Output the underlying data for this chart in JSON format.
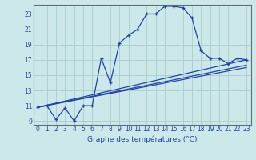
{
  "title": "Graphe des températures (°C)",
  "bg_color": "#cce8e8",
  "grid_color": "#aacccc",
  "line_color": "#2244aa",
  "xlim": [
    -0.5,
    23.5
  ],
  "ylim": [
    8.5,
    24.2
  ],
  "xticks": [
    0,
    1,
    2,
    3,
    4,
    5,
    6,
    7,
    8,
    9,
    10,
    11,
    12,
    13,
    14,
    15,
    16,
    17,
    18,
    19,
    20,
    21,
    22,
    23
  ],
  "yticks": [
    9,
    11,
    13,
    15,
    17,
    19,
    21,
    23
  ],
  "curve1_x": [
    0,
    1,
    2,
    3,
    4,
    5,
    6,
    7,
    8,
    9,
    10,
    11,
    12,
    13,
    14,
    15,
    16,
    17,
    18,
    19,
    20,
    21,
    22,
    23
  ],
  "curve1_y": [
    10.8,
    11.0,
    9.2,
    10.7,
    9.0,
    11.0,
    11.0,
    17.2,
    14.0,
    19.2,
    20.2,
    21.0,
    23.0,
    23.0,
    24.0,
    24.0,
    23.8,
    22.5,
    18.2,
    17.2,
    17.2,
    16.5,
    17.2,
    17.0
  ],
  "curve2_x": [
    0,
    23
  ],
  "curve2_y": [
    10.8,
    17.0
  ],
  "curve3_x": [
    0,
    23
  ],
  "curve3_y": [
    10.8,
    16.3
  ],
  "curve4_x": [
    0,
    23
  ],
  "curve4_y": [
    10.8,
    16.0
  ]
}
